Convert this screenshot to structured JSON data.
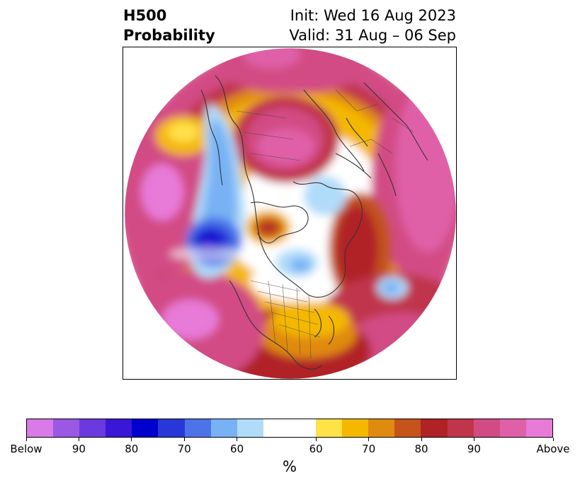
{
  "header": {
    "title_line1": "H500",
    "title_line2": "Probability",
    "init_text": "Init: Wed 16 Aug 2023",
    "valid_text": "Valid: 31 Aug – 06 Sep"
  },
  "map": {
    "projection": "polar-stereographic",
    "background_color": "#ffffff",
    "coastline_color": "#333333"
  },
  "colorbar": {
    "segments": [
      {
        "color": "#d97ae8"
      },
      {
        "color": "#9a58e4"
      },
      {
        "color": "#6a3ae0"
      },
      {
        "color": "#3a17d6"
      },
      {
        "color": "#0000cc"
      },
      {
        "color": "#2838d8"
      },
      {
        "color": "#4c74e8"
      },
      {
        "color": "#78b2f4"
      },
      {
        "color": "#b0dcfa"
      },
      {
        "color": "#ffffff",
        "wide": true
      },
      {
        "color": "#ffe148"
      },
      {
        "color": "#f4b800"
      },
      {
        "color": "#e08a10"
      },
      {
        "color": "#c4531c"
      },
      {
        "color": "#b02226"
      },
      {
        "color": "#c0354c"
      },
      {
        "color": "#d24c84"
      },
      {
        "color": "#e060a8"
      },
      {
        "color": "#e87ad8"
      }
    ],
    "tick_labels": [
      "Below",
      "90",
      "80",
      "70",
      "60",
      "60",
      "70",
      "80",
      "90",
      "Above"
    ],
    "unit_label": "%"
  }
}
